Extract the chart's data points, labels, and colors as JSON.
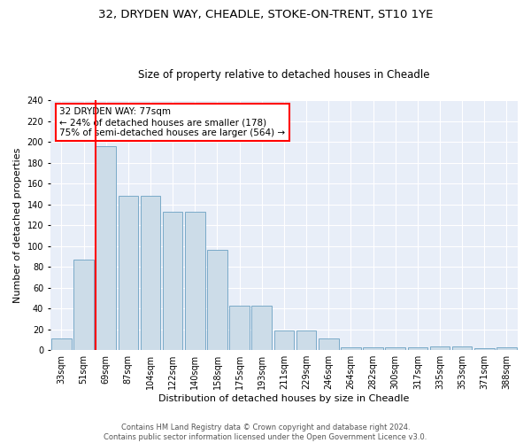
{
  "title1": "32, DRYDEN WAY, CHEADLE, STOKE-ON-TRENT, ST10 1YE",
  "title2": "Size of property relative to detached houses in Cheadle",
  "xlabel": "Distribution of detached houses by size in Cheadle",
  "ylabel": "Number of detached properties",
  "categories": [
    "33sqm",
    "51sqm",
    "69sqm",
    "87sqm",
    "104sqm",
    "122sqm",
    "140sqm",
    "158sqm",
    "175sqm",
    "193sqm",
    "211sqm",
    "229sqm",
    "246sqm",
    "264sqm",
    "282sqm",
    "300sqm",
    "317sqm",
    "335sqm",
    "353sqm",
    "371sqm",
    "388sqm"
  ],
  "values": [
    11,
    87,
    196,
    148,
    148,
    133,
    133,
    96,
    43,
    43,
    19,
    19,
    11,
    3,
    3,
    3,
    3,
    4,
    4,
    2,
    3
  ],
  "bar_color": "#ccdce8",
  "bar_edge_color": "#7aaac8",
  "bg_color": "#e8eef8",
  "red_line_index": 2,
  "annotation_text": "32 DRYDEN WAY: 77sqm\n← 24% of detached houses are smaller (178)\n75% of semi-detached houses are larger (564) →",
  "annotation_box_color": "white",
  "annotation_box_edge": "red",
  "footer": "Contains HM Land Registry data © Crown copyright and database right 2024.\nContains public sector information licensed under the Open Government Licence v3.0.",
  "ylim": [
    0,
    240
  ],
  "yticks": [
    0,
    20,
    40,
    60,
    80,
    100,
    120,
    140,
    160,
    180,
    200,
    220,
    240
  ],
  "title1_fontsize": 9.5,
  "title2_fontsize": 8.5,
  "xlabel_fontsize": 8,
  "ylabel_fontsize": 8,
  "tick_fontsize": 7,
  "footer_fontsize": 6,
  "annot_fontsize": 7.5
}
